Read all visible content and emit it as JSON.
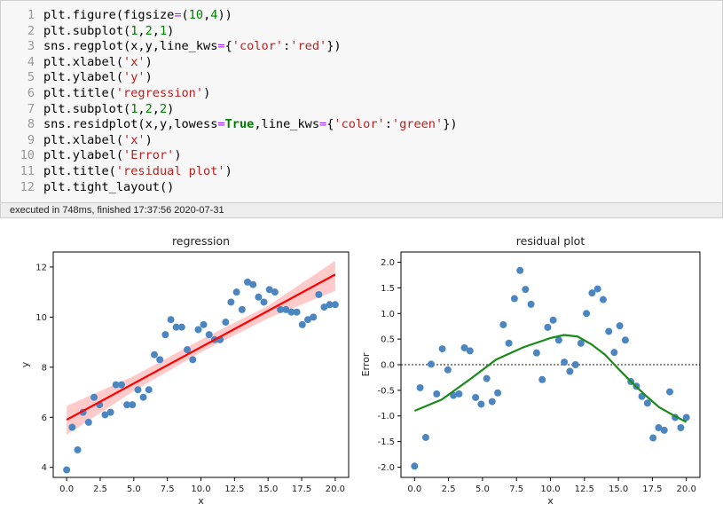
{
  "code_cell": {
    "lines": [
      {
        "n": "1",
        "tokens": [
          [
            "fn",
            "plt.figure(figsize"
          ],
          [
            "op",
            "="
          ],
          [
            "fn",
            "("
          ],
          [
            "num",
            "10"
          ],
          [
            "fn",
            ","
          ],
          [
            "num",
            "4"
          ],
          [
            "fn",
            "))"
          ]
        ]
      },
      {
        "n": "2",
        "tokens": [
          [
            "fn",
            "plt.subplot("
          ],
          [
            "num",
            "1"
          ],
          [
            "fn",
            ","
          ],
          [
            "num",
            "2"
          ],
          [
            "fn",
            ","
          ],
          [
            "num",
            "1"
          ],
          [
            "fn",
            ")"
          ]
        ]
      },
      {
        "n": "3",
        "tokens": [
          [
            "fn",
            "sns.regplot(x,y,line_kws"
          ],
          [
            "op",
            "="
          ],
          [
            "fn",
            "{"
          ],
          [
            "str",
            "'color'"
          ],
          [
            "fn",
            ":"
          ],
          [
            "str",
            "'red'"
          ],
          [
            "fn",
            "})"
          ]
        ]
      },
      {
        "n": "4",
        "tokens": [
          [
            "fn",
            "plt.xlabel("
          ],
          [
            "str",
            "'x'"
          ],
          [
            "fn",
            ")"
          ]
        ]
      },
      {
        "n": "5",
        "tokens": [
          [
            "fn",
            "plt.ylabel("
          ],
          [
            "str",
            "'y'"
          ],
          [
            "fn",
            ")"
          ]
        ]
      },
      {
        "n": "6",
        "tokens": [
          [
            "fn",
            "plt.title("
          ],
          [
            "str",
            "'regression'"
          ],
          [
            "fn",
            ")"
          ]
        ]
      },
      {
        "n": "7",
        "tokens": [
          [
            "fn",
            "plt.subplot("
          ],
          [
            "num",
            "1"
          ],
          [
            "fn",
            ","
          ],
          [
            "num",
            "2"
          ],
          [
            "fn",
            ","
          ],
          [
            "num",
            "2"
          ],
          [
            "fn",
            ")"
          ]
        ]
      },
      {
        "n": "8",
        "tokens": [
          [
            "fn",
            "sns.residplot(x,y,lowess"
          ],
          [
            "op",
            "="
          ],
          [
            "kw",
            "True"
          ],
          [
            "fn",
            ",line_kws"
          ],
          [
            "op",
            "="
          ],
          [
            "fn",
            "{"
          ],
          [
            "str",
            "'color'"
          ],
          [
            "fn",
            ":"
          ],
          [
            "str",
            "'green'"
          ],
          [
            "fn",
            "})"
          ]
        ]
      },
      {
        "n": "9",
        "tokens": [
          [
            "fn",
            "plt.xlabel("
          ],
          [
            "str",
            "'x'"
          ],
          [
            "fn",
            ")"
          ]
        ]
      },
      {
        "n": "10",
        "tokens": [
          [
            "fn",
            "plt.ylabel("
          ],
          [
            "str",
            "'Error'"
          ],
          [
            "fn",
            ")"
          ]
        ]
      },
      {
        "n": "11",
        "tokens": [
          [
            "fn",
            "plt.title("
          ],
          [
            "str",
            "'residual plot'"
          ],
          [
            "fn",
            ")"
          ]
        ]
      },
      {
        "n": "12",
        "tokens": [
          [
            "fn",
            "plt.tight_layout()"
          ]
        ]
      }
    ]
  },
  "status_text": "executed in 748ms, finished 17:37:56 2020-07-31",
  "colors": {
    "point": "#4c86c1",
    "reg_line": "#ff0000",
    "ci_band": "#ffb3b3",
    "lowess": "#1a8a1a",
    "zero_line": "#444444"
  },
  "chart_data": [
    {
      "type": "scatter",
      "title": "regression",
      "xlabel": "x",
      "ylabel": "y",
      "xlim": [
        -1,
        21
      ],
      "ylim": [
        3.6,
        12.6
      ],
      "xticks": [
        "0.0",
        "2.5",
        "5.0",
        "7.5",
        "10.0",
        "12.5",
        "15.0",
        "17.5",
        "20.0"
      ],
      "yticks": [
        "4",
        "6",
        "8",
        "10",
        "12"
      ],
      "x": [
        0.0,
        0.41,
        0.82,
        1.22,
        1.63,
        2.04,
        2.45,
        2.86,
        3.27,
        3.67,
        4.08,
        4.49,
        4.9,
        5.31,
        5.71,
        6.12,
        6.53,
        6.94,
        7.35,
        7.76,
        8.16,
        8.57,
        8.98,
        9.39,
        9.8,
        10.2,
        10.61,
        11.02,
        11.43,
        11.84,
        12.24,
        12.65,
        13.06,
        13.47,
        13.88,
        14.29,
        14.69,
        15.1,
        15.51,
        15.92,
        16.33,
        16.73,
        17.14,
        17.55,
        17.96,
        18.37,
        18.78,
        19.18,
        19.59,
        20.0
      ],
      "y": [
        3.9,
        5.6,
        4.7,
        6.2,
        5.8,
        6.8,
        6.5,
        6.1,
        6.2,
        7.3,
        7.3,
        6.5,
        6.5,
        7.1,
        6.8,
        7.1,
        8.5,
        8.3,
        9.3,
        9.9,
        9.6,
        9.6,
        8.7,
        8.3,
        9.5,
        9.7,
        9.3,
        9.1,
        9.1,
        9.8,
        10.6,
        11.0,
        10.3,
        11.4,
        11.3,
        10.8,
        10.6,
        11.1,
        11.0,
        10.3,
        10.3,
        10.2,
        10.2,
        9.7,
        9.9,
        10.0,
        10.9,
        10.4,
        10.5,
        10.5
      ],
      "fit_line": {
        "x": [
          0,
          20
        ],
        "y": [
          5.9,
          11.7
        ]
      },
      "ci_band": {
        "x": [
          0,
          5,
          10,
          15,
          20
        ],
        "lower": [
          5.3,
          7.05,
          8.6,
          9.95,
          11.05
        ],
        "upper": [
          6.45,
          7.65,
          9.1,
          10.45,
          12.25
        ]
      }
    },
    {
      "type": "scatter",
      "title": "residual plot",
      "xlabel": "x",
      "ylabel": "Error",
      "xlim": [
        -1,
        21
      ],
      "ylim": [
        -2.2,
        2.2
      ],
      "xticks": [
        "0.0",
        "2.5",
        "5.0",
        "7.5",
        "10.0",
        "12.5",
        "15.0",
        "17.5",
        "20.0"
      ],
      "yticks": [
        "2.0",
        "1.5",
        "1.0",
        "0.5",
        "0.0",
        "-0.5",
        "-1.0",
        "-1.5",
        "-2.0"
      ],
      "x": [
        0.0,
        0.41,
        0.82,
        1.22,
        1.63,
        2.04,
        2.45,
        2.86,
        3.27,
        3.67,
        4.08,
        4.49,
        4.9,
        5.31,
        5.71,
        6.12,
        6.53,
        6.94,
        7.35,
        7.76,
        8.16,
        8.57,
        8.98,
        9.39,
        9.8,
        10.2,
        10.61,
        11.02,
        11.43,
        11.84,
        12.24,
        12.65,
        13.06,
        13.47,
        13.88,
        14.29,
        14.69,
        15.1,
        15.51,
        15.92,
        16.33,
        16.73,
        17.14,
        17.55,
        17.96,
        18.37,
        18.78,
        19.18,
        19.59,
        20.0
      ],
      "y": [
        -1.98,
        -0.45,
        -1.42,
        0.01,
        -0.57,
        0.31,
        -0.1,
        -0.6,
        -0.57,
        0.33,
        0.27,
        -0.64,
        -0.77,
        -0.27,
        -0.72,
        -0.55,
        0.78,
        0.42,
        1.29,
        1.84,
        1.47,
        1.18,
        0.23,
        -0.29,
        0.73,
        0.87,
        0.48,
        0.05,
        -0.13,
        0.0,
        0.42,
        1.0,
        1.4,
        1.48,
        1.27,
        0.65,
        0.24,
        0.76,
        0.48,
        -0.33,
        -0.42,
        -0.62,
        -0.75,
        -1.43,
        -1.23,
        -1.28,
        -0.53,
        -1.03,
        -1.23,
        -1.03
      ],
      "lowess": {
        "x": [
          0,
          2,
          4,
          6,
          8,
          10,
          11,
          12,
          13,
          14,
          15,
          16,
          17,
          18,
          19,
          20
        ],
        "y": [
          -0.9,
          -0.68,
          -0.3,
          0.1,
          0.34,
          0.52,
          0.58,
          0.55,
          0.4,
          0.2,
          -0.08,
          -0.35,
          -0.6,
          -0.83,
          -0.98,
          -1.12
        ]
      },
      "zero_line": 0
    }
  ]
}
